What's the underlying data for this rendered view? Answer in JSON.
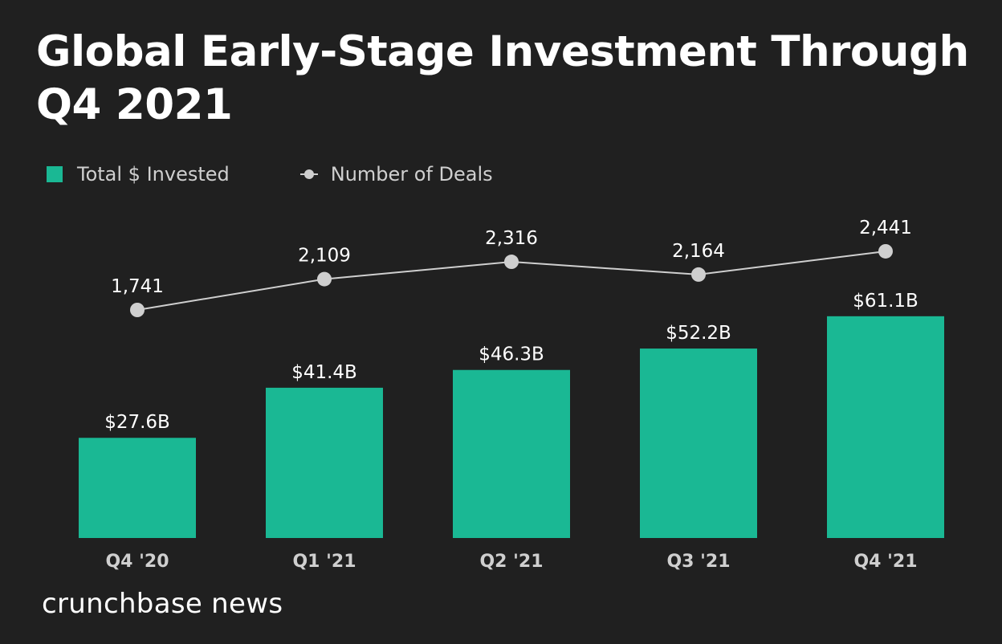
{
  "title": "Global Early-Stage Investment Through Q4 2021",
  "brand": "crunchbase news",
  "colors": {
    "background": "#202020",
    "bar": "#1ab894",
    "line": "#cfcfcf",
    "text": "#ffffff",
    "axis_text": "#cfcfcf"
  },
  "chart_data": {
    "type": "bar",
    "title": "Global Early-Stage Investment Through Q4 2021",
    "xlabel": "",
    "ylabel": "",
    "categories": [
      "Q4 '20",
      "Q1 '21",
      "Q2 '21",
      "Q3 '21",
      "Q4 '21"
    ],
    "series": [
      {
        "name": "Total $ Invested",
        "type": "bar",
        "unit": "$B",
        "values": [
          27.6,
          41.4,
          46.3,
          52.2,
          61.1
        ],
        "labels": [
          "$27.6B",
          "$41.4B",
          "$46.3B",
          "$52.2B",
          "$61.1B"
        ]
      },
      {
        "name": "Number of Deals",
        "type": "line",
        "values": [
          1741,
          2109,
          2316,
          2164,
          2441
        ],
        "labels": [
          "1,741",
          "2,109",
          "2,316",
          "2,164",
          "2,441"
        ]
      }
    ],
    "legend": {
      "position": "top-left",
      "entries": [
        "Total $ Invested",
        "Number of Deals"
      ]
    },
    "grid": false
  }
}
